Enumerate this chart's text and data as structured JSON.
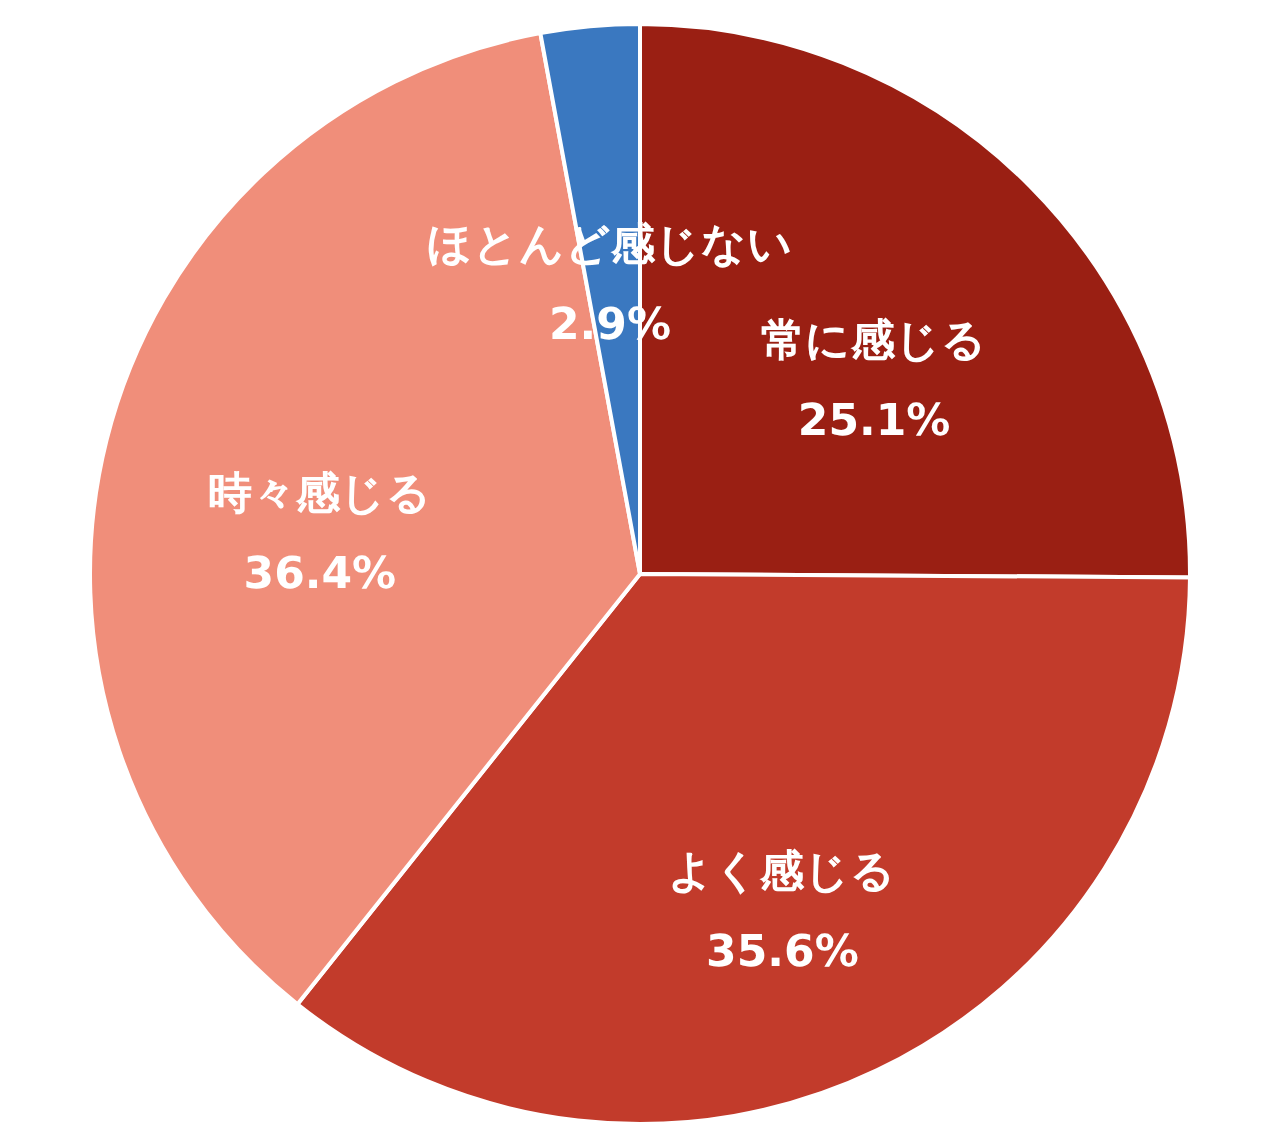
{
  "chart_data": {
    "type": "pie",
    "categories": [
      "常に感じる",
      "よく感じる",
      "時々感じる",
      "ほとんど感じない"
    ],
    "values": [
      25.1,
      35.6,
      36.4,
      2.9
    ],
    "value_labels": [
      "25.1%",
      "35.6%",
      "36.4%",
      "2.9%"
    ],
    "colors": [
      "#9a1f13",
      "#c23b2b",
      "#f08e7a",
      "#3a78c0"
    ]
  }
}
